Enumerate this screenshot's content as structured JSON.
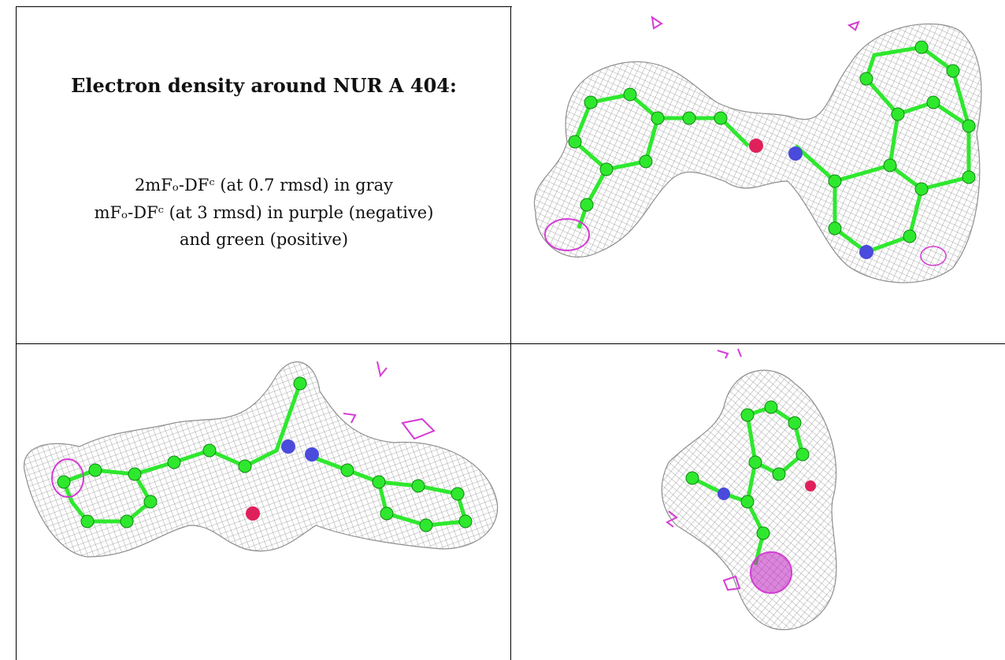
{
  "title": "Electron density around NUR A 404:",
  "legend_lines": [
    "2mFₒ-DFᶜ (at 0.7 rmsd) in gray",
    "mFₒ-DFᶜ (at 3 rmsd) in purple (negative)",
    "and green (positive)"
  ],
  "colors": {
    "mesh": "#9a9a9a",
    "carbon": "#2ee82e",
    "nitrogen": "#4a4adc",
    "oxygen": "#e0205a",
    "negative_density": "#d43cd4",
    "positive_density": "#22c022"
  },
  "panels": [
    "view-top-right",
    "view-bottom-left",
    "view-bottom-right"
  ]
}
